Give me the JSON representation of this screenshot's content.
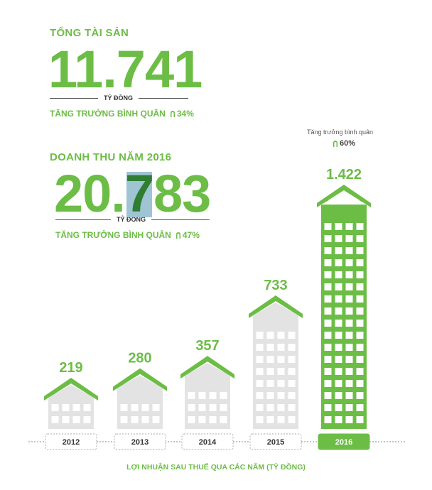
{
  "total_assets": {
    "label": "TỔNG TÀI SẢN",
    "value": "11.741",
    "unit": "TỶ ĐỒNG",
    "growth_label": "TĂNG TRƯỞNG BÌNH QUÂN",
    "growth_value": "34%"
  },
  "revenue": {
    "label": "DOANH THU NĂM 2016",
    "value_part1": "20.",
    "value_highlight": "7",
    "value_part2": "83",
    "unit": "TỶ ĐỒNG",
    "growth_label": "TĂNG TRƯỞNG BÌNH QUÂN",
    "growth_value": "47%"
  },
  "profit_growth": {
    "label": "Tăng trưởng bình quân",
    "value": "60%"
  },
  "colors": {
    "green": "#6cbd45",
    "dark_green": "#2f7d33",
    "grey_building": "#e3e3e3",
    "highlight_blue": "#9fc4d4"
  },
  "chart_data": {
    "type": "bar",
    "title": "",
    "xlabel": "LỢI NHUẬN SAU THUẾ QUA CÁC NĂM (TỶ ĐỒNG)",
    "ylabel": "",
    "categories": [
      "2012",
      "2013",
      "2014",
      "2015",
      "2016"
    ],
    "values": [
      219,
      280,
      357,
      733,
      1422
    ],
    "value_labels": [
      "219",
      "280",
      "357",
      "733",
      "1.422"
    ],
    "highlight_category": "2016",
    "ylim": [
      0,
      1422
    ]
  }
}
